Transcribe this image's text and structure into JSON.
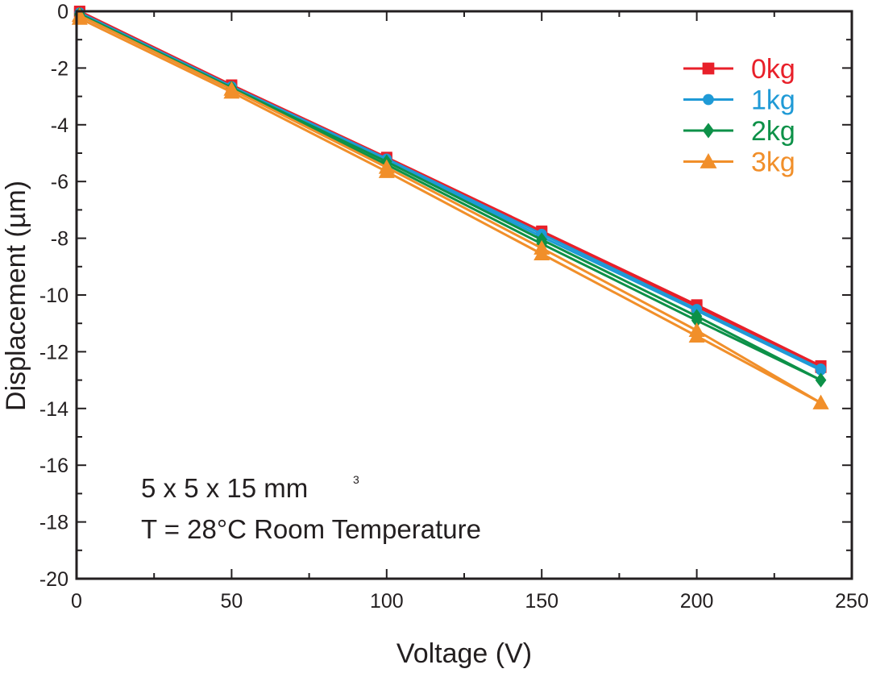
{
  "chart_data": {
    "type": "line",
    "xlabel": "Voltage (V)",
    "ylabel": "Displacement (µm)",
    "xlim": [
      0,
      250
    ],
    "ylim": [
      -20,
      0
    ],
    "xticks": [
      "0",
      "50",
      "100",
      "150",
      "200",
      "250"
    ],
    "yticks": [
      "0",
      "-2",
      "-4",
      "-6",
      "-8",
      "-10",
      "-12",
      "-14",
      "-16",
      "-18",
      "-20"
    ],
    "grid": false,
    "legend_position": "top-right",
    "annotations": {
      "line1": "5 x 5 x 15 mm",
      "line1_sup": "3",
      "line2": "T = 28°C Room Temperature"
    },
    "series": [
      {
        "name": "0kg",
        "color": "#e8202a",
        "marker": "square",
        "runs": [
          {
            "x": [
              1,
              50,
              100,
              150,
              200,
              240
            ],
            "y": [
              0,
              -2.6,
              -5.15,
              -7.75,
              -10.35,
              -12.5
            ]
          },
          {
            "x": [
              1,
              50,
              100,
              150,
              200,
              240
            ],
            "y": [
              -0.05,
              -2.65,
              -5.2,
              -7.8,
              -10.4,
              -12.55
            ]
          }
        ]
      },
      {
        "name": "1kg",
        "color": "#1f9ad6",
        "marker": "circle",
        "runs": [
          {
            "x": [
              1,
              50,
              100,
              150,
              200,
              240
            ],
            "y": [
              -0.05,
              -2.65,
              -5.2,
              -7.85,
              -10.5,
              -12.6
            ]
          },
          {
            "x": [
              1,
              50,
              100,
              150,
              200,
              240
            ],
            "y": [
              -0.1,
              -2.7,
              -5.25,
              -7.95,
              -10.55,
              -12.65
            ]
          }
        ]
      },
      {
        "name": "2kg",
        "color": "#0d9148",
        "marker": "diamond",
        "runs": [
          {
            "x": [
              1,
              50,
              100,
              150,
              200,
              240
            ],
            "y": [
              -0.1,
              -2.7,
              -5.3,
              -8.05,
              -10.75,
              -13.0
            ]
          },
          {
            "x": [
              1,
              50,
              100,
              150,
              200,
              240
            ],
            "y": [
              -0.15,
              -2.75,
              -5.4,
              -8.2,
              -10.9,
              -13.0
            ]
          }
        ]
      },
      {
        "name": "3kg",
        "color": "#f18f2a",
        "marker": "triangle",
        "runs": [
          {
            "x": [
              1,
              50,
              100,
              150,
              200,
              240
            ],
            "y": [
              -0.15,
              -2.75,
              -5.5,
              -8.35,
              -11.25,
              -13.8
            ]
          },
          {
            "x": [
              1,
              50,
              100,
              150,
              200,
              240
            ],
            "y": [
              -0.25,
              -2.85,
              -5.65,
              -8.55,
              -11.45,
              -13.8
            ]
          }
        ]
      }
    ]
  }
}
